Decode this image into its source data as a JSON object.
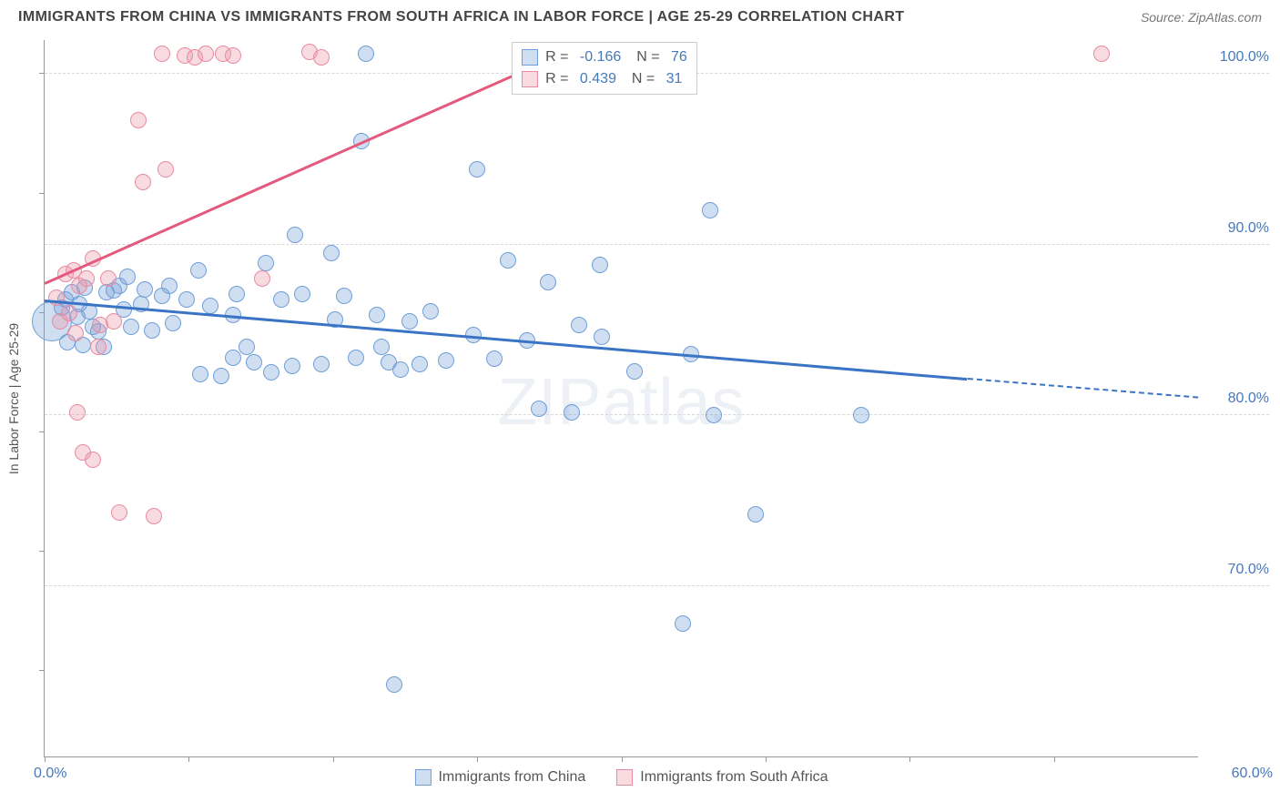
{
  "header": {
    "title": "IMMIGRANTS FROM CHINA VS IMMIGRANTS FROM SOUTH AFRICA IN LABOR FORCE | AGE 25-29 CORRELATION CHART",
    "source_prefix": "Source: ",
    "source_name": "ZipAtlas.com"
  },
  "chart": {
    "type": "scatter",
    "ylabel": "In Labor Force | Age 25-29",
    "xlim": [
      0,
      60
    ],
    "ylim": [
      60,
      102
    ],
    "xtick_positions": [
      0,
      7.5,
      15,
      22.5,
      30,
      37.5,
      45,
      52.5
    ],
    "ytick_positions": [
      65,
      72,
      79,
      86,
      93,
      100
    ],
    "y_gridlines": [
      70,
      80,
      90,
      100
    ],
    "y_gridline_labels": [
      "70.0%",
      "80.0%",
      "90.0%",
      "100.0%"
    ],
    "xlabel_0": "0.0%",
    "xlabel_60": "60.0%",
    "background_color": "#ffffff",
    "grid_color": "#d8d8d8",
    "axis_color": "#999999",
    "watermark": "ZIPatlas",
    "series": [
      {
        "name": "Immigrants from China",
        "fill_color": "rgba(120,160,215,0.35)",
        "stroke_color": "#6f9fd8",
        "trend_color": "#3a74c4",
        "marker_radius": 9,
        "R": "-0.166",
        "N": "76",
        "trend": {
          "x1": 0,
          "y1": 86.8,
          "x2": 48,
          "y2": 82.2,
          "dash_to_x": 60,
          "dash_to_y": 81.1
        },
        "points": [
          {
            "x": 0.4,
            "y": 85.5,
            "r": 22
          },
          {
            "x": 0.9,
            "y": 86.3
          },
          {
            "x": 1.1,
            "y": 86.8
          },
          {
            "x": 1.4,
            "y": 87.2
          },
          {
            "x": 1.8,
            "y": 86.5
          },
          {
            "x": 1.2,
            "y": 84.3
          },
          {
            "x": 1.7,
            "y": 85.8
          },
          {
            "x": 2.1,
            "y": 87.5
          },
          {
            "x": 2.0,
            "y": 84.1
          },
          {
            "x": 2.3,
            "y": 86.1
          },
          {
            "x": 2.5,
            "y": 85.2
          },
          {
            "x": 2.8,
            "y": 84.9
          },
          {
            "x": 3.2,
            "y": 87.2
          },
          {
            "x": 3.1,
            "y": 84.0
          },
          {
            "x": 3.6,
            "y": 87.3
          },
          {
            "x": 3.9,
            "y": 87.6
          },
          {
            "x": 4.1,
            "y": 86.2
          },
          {
            "x": 4.3,
            "y": 88.1
          },
          {
            "x": 4.5,
            "y": 85.2
          },
          {
            "x": 5.0,
            "y": 86.5
          },
          {
            "x": 5.2,
            "y": 87.4
          },
          {
            "x": 5.6,
            "y": 85.0
          },
          {
            "x": 6.1,
            "y": 87.0
          },
          {
            "x": 6.5,
            "y": 87.6
          },
          {
            "x": 6.7,
            "y": 85.4
          },
          {
            "x": 7.4,
            "y": 86.8
          },
          {
            "x": 8.0,
            "y": 88.5
          },
          {
            "x": 8.1,
            "y": 82.4
          },
          {
            "x": 8.6,
            "y": 86.4
          },
          {
            "x": 9.2,
            "y": 82.3
          },
          {
            "x": 9.8,
            "y": 85.9
          },
          {
            "x": 9.8,
            "y": 83.4
          },
          {
            "x": 10.0,
            "y": 87.1
          },
          {
            "x": 10.5,
            "y": 84.0
          },
          {
            "x": 10.9,
            "y": 83.1
          },
          {
            "x": 11.5,
            "y": 88.9
          },
          {
            "x": 11.8,
            "y": 82.5
          },
          {
            "x": 12.3,
            "y": 86.8
          },
          {
            "x": 12.9,
            "y": 82.9
          },
          {
            "x": 13.4,
            "y": 87.1
          },
          {
            "x": 13.0,
            "y": 90.6
          },
          {
            "x": 14.4,
            "y": 83.0
          },
          {
            "x": 14.9,
            "y": 89.5
          },
          {
            "x": 15.1,
            "y": 85.6
          },
          {
            "x": 15.6,
            "y": 87.0
          },
          {
            "x": 16.2,
            "y": 83.4
          },
          {
            "x": 16.5,
            "y": 96.1
          },
          {
            "x": 16.7,
            "y": 101.2
          },
          {
            "x": 17.3,
            "y": 85.9
          },
          {
            "x": 17.5,
            "y": 84.0
          },
          {
            "x": 17.9,
            "y": 83.1
          },
          {
            "x": 18.5,
            "y": 82.7
          },
          {
            "x": 18.2,
            "y": 64.2
          },
          {
            "x": 19.0,
            "y": 85.5
          },
          {
            "x": 19.5,
            "y": 83.0
          },
          {
            "x": 20.1,
            "y": 86.1
          },
          {
            "x": 20.9,
            "y": 83.2
          },
          {
            "x": 22.3,
            "y": 84.7
          },
          {
            "x": 22.5,
            "y": 94.4
          },
          {
            "x": 23.4,
            "y": 83.3
          },
          {
            "x": 24.1,
            "y": 89.1
          },
          {
            "x": 25.1,
            "y": 84.4
          },
          {
            "x": 25.7,
            "y": 80.4
          },
          {
            "x": 26.2,
            "y": 87.8
          },
          {
            "x": 27.4,
            "y": 80.2
          },
          {
            "x": 27.8,
            "y": 85.3
          },
          {
            "x": 28.9,
            "y": 88.8
          },
          {
            "x": 29.0,
            "y": 84.6
          },
          {
            "x": 30.2,
            "y": 101.4
          },
          {
            "x": 30.7,
            "y": 82.6
          },
          {
            "x": 33.6,
            "y": 83.6
          },
          {
            "x": 33.2,
            "y": 67.8
          },
          {
            "x": 34.6,
            "y": 92.0
          },
          {
            "x": 34.8,
            "y": 80.0
          },
          {
            "x": 37.0,
            "y": 74.2
          },
          {
            "x": 42.5,
            "y": 80.0
          }
        ]
      },
      {
        "name": "Immigrants from South Africa",
        "fill_color": "rgba(235,150,170,0.35)",
        "stroke_color": "#e88ba2",
        "trend_color": "#e45a7e",
        "marker_radius": 9,
        "R": "0.439",
        "N": "31",
        "trend": {
          "x1": 0,
          "y1": 87.8,
          "x2": 28,
          "y2": 101.8
        },
        "points": [
          {
            "x": 0.6,
            "y": 86.9
          },
          {
            "x": 0.8,
            "y": 85.5
          },
          {
            "x": 1.1,
            "y": 88.3
          },
          {
            "x": 1.3,
            "y": 86.0
          },
          {
            "x": 1.5,
            "y": 88.5
          },
          {
            "x": 1.6,
            "y": 84.8
          },
          {
            "x": 1.8,
            "y": 87.6
          },
          {
            "x": 1.7,
            "y": 80.2
          },
          {
            "x": 2.2,
            "y": 88.0
          },
          {
            "x": 2.0,
            "y": 77.8
          },
          {
            "x": 2.5,
            "y": 89.2
          },
          {
            "x": 2.9,
            "y": 85.3
          },
          {
            "x": 2.5,
            "y": 77.4
          },
          {
            "x": 2.8,
            "y": 84.0
          },
          {
            "x": 3.3,
            "y": 88.0
          },
          {
            "x": 3.6,
            "y": 85.5
          },
          {
            "x": 3.9,
            "y": 74.3
          },
          {
            "x": 4.9,
            "y": 97.3
          },
          {
            "x": 5.1,
            "y": 93.7
          },
          {
            "x": 5.7,
            "y": 74.1
          },
          {
            "x": 6.1,
            "y": 101.2
          },
          {
            "x": 6.3,
            "y": 94.4
          },
          {
            "x": 7.3,
            "y": 101.1
          },
          {
            "x": 7.8,
            "y": 101.0
          },
          {
            "x": 8.4,
            "y": 101.2
          },
          {
            "x": 9.3,
            "y": 101.2
          },
          {
            "x": 9.8,
            "y": 101.1
          },
          {
            "x": 11.3,
            "y": 88.0
          },
          {
            "x": 13.8,
            "y": 101.3
          },
          {
            "x": 14.4,
            "y": 101.0
          },
          {
            "x": 55.0,
            "y": 101.2
          }
        ]
      }
    ],
    "legend_bottom": [
      {
        "label": "Immigrants from China",
        "swatch_fill": "rgba(120,160,215,0.35)",
        "swatch_stroke": "#6f9fd8"
      },
      {
        "label": "Immigrants from South Africa",
        "swatch_fill": "rgba(235,150,170,0.35)",
        "swatch_stroke": "#e88ba2"
      }
    ]
  }
}
